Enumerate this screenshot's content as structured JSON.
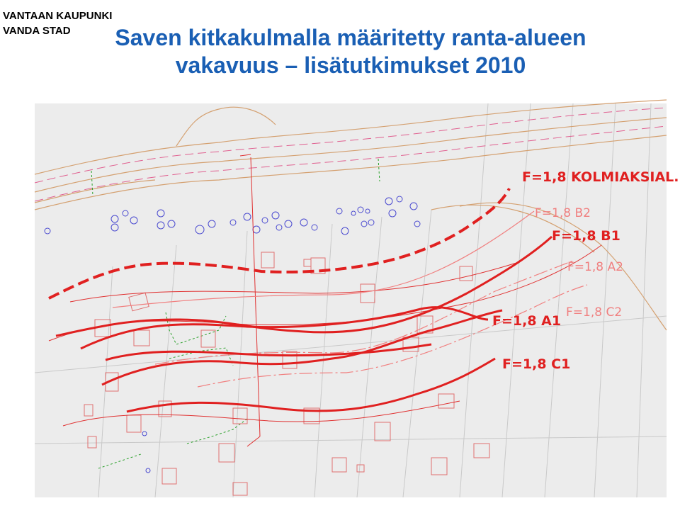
{
  "header": {
    "org_line1": "VANTAAN KAUPUNKI",
    "org_line2": "VANDA STAD",
    "title_line1": "Saven kitkakulmalla määritetty ranta-alueen",
    "title_line2": "vakavuus – lisätutkimukset 2010"
  },
  "map": {
    "labels": {
      "kolmiaksial": "F=1,8 KOLMIAKSIAL.",
      "b2": "F=1,8 B2",
      "b1": "F=1,8 B1",
      "a2": "F=1,8 A2",
      "c2": "F=1,8 C2",
      "a1": "F=1,8 A1",
      "c1": "F=1,8 C1"
    },
    "colors": {
      "slip_line": "#e02020",
      "faint_line": "#f08080",
      "road": "#d4a070",
      "tree_symbol": "#4a4ad0",
      "background": "#ececec",
      "title": "#1a5fb4"
    }
  }
}
